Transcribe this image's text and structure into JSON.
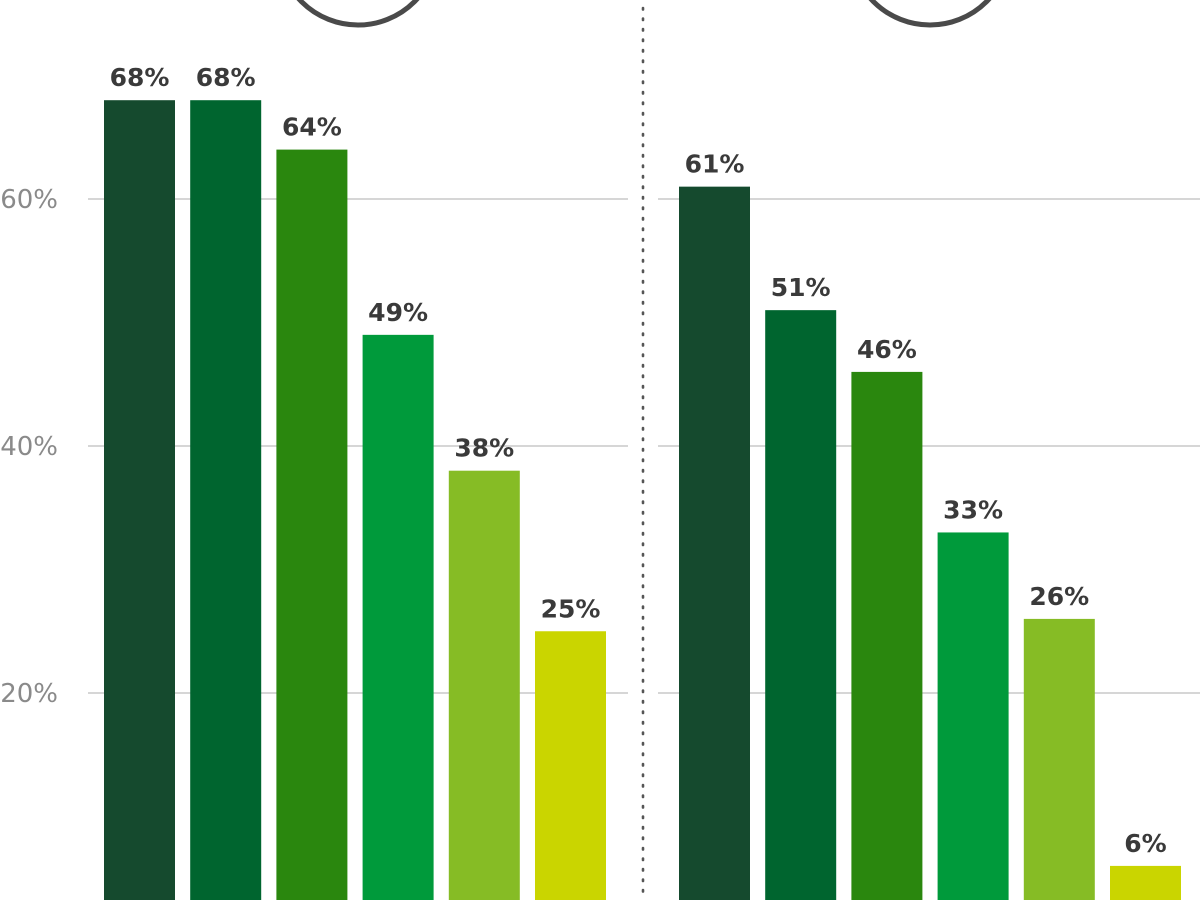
{
  "chart_data": [
    {
      "type": "bar",
      "panel": "left",
      "categories": [
        "",
        "",
        "",
        "",
        "",
        ""
      ],
      "values": [
        68,
        68,
        64,
        49,
        38,
        25
      ],
      "value_labels": [
        "68%",
        "68%",
        "64%",
        "49%",
        "38%",
        "25%"
      ],
      "colors": [
        "#154a2e",
        "#00652f",
        "#2a870e",
        "#009a3b",
        "#86bc25",
        "#cad500"
      ],
      "y_ticks": [
        {
          "value": 60,
          "label": "60%"
        },
        {
          "value": 40,
          "label": "40%"
        },
        {
          "value": 20,
          "label": "20%"
        }
      ],
      "ylim": [
        0,
        72
      ],
      "grid": true,
      "title": "",
      "xlabel": "",
      "ylabel": ""
    },
    {
      "type": "bar",
      "panel": "right",
      "categories": [
        "",
        "",
        "",
        "",
        "",
        ""
      ],
      "values": [
        61,
        51,
        46,
        33,
        26,
        6
      ],
      "value_labels": [
        "61%",
        "51%",
        "46%",
        "33%",
        "26%",
        "6%"
      ],
      "colors": [
        "#154a2e",
        "#00652f",
        "#2a870e",
        "#009a3b",
        "#86bc25",
        "#cad500"
      ],
      "y_ticks": [
        {
          "value": 60,
          "label": ""
        },
        {
          "value": 40,
          "label": ""
        },
        {
          "value": 20,
          "label": ""
        }
      ],
      "ylim": [
        0,
        72
      ],
      "grid": true,
      "title": "",
      "xlabel": "",
      "ylabel": ""
    }
  ],
  "colors": {
    "grid": "#c8c8c8",
    "divider": "#555555",
    "circle_stroke": "#4a4a4a",
    "tick_text": "#8a8a8a",
    "value_text": "#3a3a3a"
  }
}
